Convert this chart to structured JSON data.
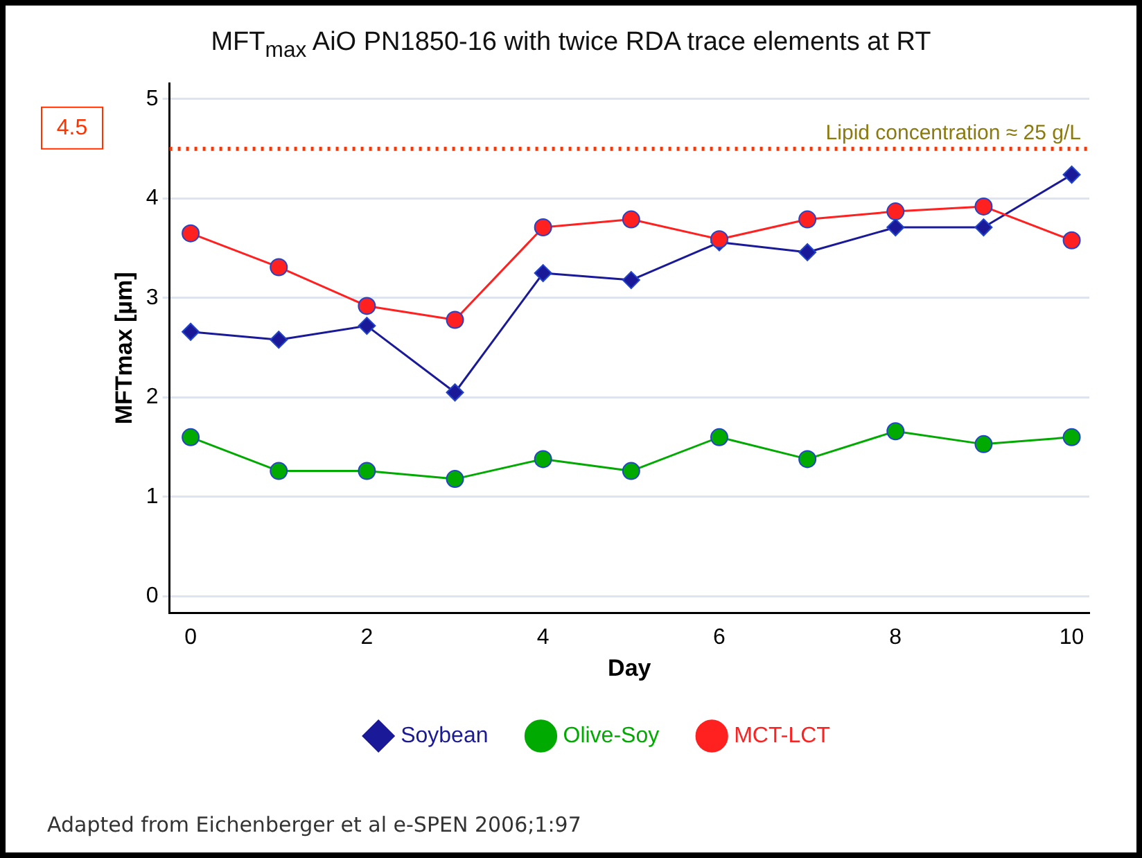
{
  "chart_data": {
    "type": "line",
    "title": "MFT$_{max}$ AiO PN1850-16 with twice RDA trace elements at RT",
    "xlabel": "Day",
    "ylabel": "MFTmax [µm]",
    "x": [
      0,
      1,
      2,
      3,
      4,
      5,
      6,
      7,
      8,
      9,
      10
    ],
    "series": [
      {
        "name": "Soybean",
        "color": "#1a1a99",
        "marker": "diamond",
        "values": [
          2.66,
          2.58,
          2.72,
          2.05,
          3.25,
          3.18,
          3.56,
          3.46,
          3.71,
          3.71,
          4.24
        ]
      },
      {
        "name": "Olive-Soy",
        "color": "#00aa00",
        "values": [
          1.6,
          1.26,
          1.26,
          1.18,
          1.38,
          1.26,
          1.6,
          1.38,
          1.66,
          1.53,
          1.6
        ]
      },
      {
        "name": "MCT-LCT",
        "color": "#ff2020",
        "values": [
          3.65,
          3.31,
          2.92,
          2.78,
          3.71,
          3.79,
          3.59,
          3.79,
          3.87,
          3.92,
          3.58
        ]
      }
    ],
    "xlim": [
      -0.24,
      10.2
    ],
    "xticks": [
      0,
      2,
      4,
      6,
      8,
      10
    ],
    "ylim": [
      -0.17,
      5.16
    ],
    "yticks": [
      0,
      1,
      2,
      3,
      4,
      5
    ],
    "ref_lines": [
      {
        "axis": "y",
        "value": 4.5,
        "label": "4.5",
        "color": "#ff3300",
        "line_style": "dotted"
      }
    ],
    "annotations": [
      "Lipid concentration ≈ 25 g/L",
      "Adapted from Eichenberger et al e-SPEN 2006;1:97"
    ],
    "grid": "y",
    "legend": "bottom",
    "marker": "circle",
    "line_style": "solid"
  }
}
